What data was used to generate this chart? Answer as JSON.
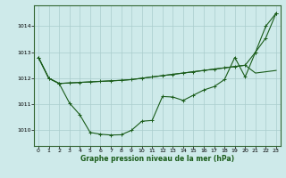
{
  "title": "Graphe pression niveau de la mer (hPa)",
  "background_color": "#ceeaea",
  "grid_color": "#aacccc",
  "line_color": "#1a5c1a",
  "spine_color": "#336633",
  "x_ticks": [
    0,
    1,
    2,
    3,
    4,
    5,
    6,
    7,
    8,
    9,
    10,
    11,
    12,
    13,
    14,
    15,
    16,
    17,
    18,
    19,
    20,
    21,
    22,
    23
  ],
  "y_ticks": [
    1010,
    1011,
    1012,
    1013,
    1014
  ],
  "ylim": [
    1009.4,
    1014.8
  ],
  "xlim": [
    -0.4,
    23.4
  ],
  "line1": [
    1012.8,
    1012.0,
    1011.8,
    1011.82,
    1011.84,
    1011.86,
    1011.88,
    1011.9,
    1011.92,
    1011.95,
    1012.0,
    1012.05,
    1012.1,
    1012.15,
    1012.2,
    1012.25,
    1012.3,
    1012.35,
    1012.4,
    1012.45,
    1012.5,
    1012.2,
    1012.25,
    1012.3
  ],
  "line2": [
    1012.8,
    1012.0,
    1011.8,
    1011.05,
    1010.6,
    1009.92,
    1009.85,
    1009.82,
    1009.83,
    1010.0,
    1010.35,
    1010.38,
    1011.3,
    1011.28,
    1011.15,
    1011.35,
    1011.55,
    1011.68,
    1011.95,
    1012.8,
    1012.05,
    1013.0,
    1014.0,
    1014.5
  ],
  "line3": [
    1012.8,
    1012.0,
    1011.8,
    1011.82,
    1011.84,
    1011.86,
    1011.88,
    1011.9,
    1011.92,
    1011.95,
    1012.0,
    1012.05,
    1012.1,
    1012.15,
    1012.2,
    1012.25,
    1012.3,
    1012.35,
    1012.4,
    1012.45,
    1012.5,
    1013.0,
    1013.55,
    1014.5
  ]
}
